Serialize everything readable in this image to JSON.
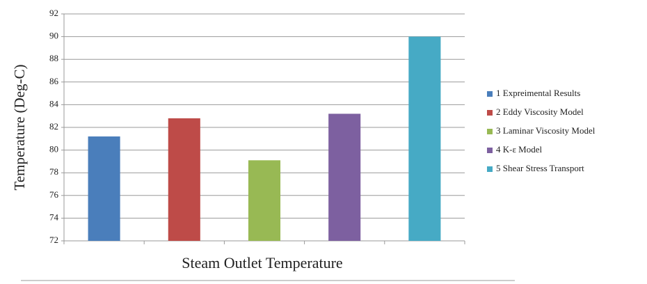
{
  "chart_data": {
    "type": "bar",
    "x_label": "Steam Outlet Temperature",
    "y_label": "Temperature (Deg-C)",
    "categories": [
      null,
      null,
      null,
      null,
      null
    ],
    "series": [
      {
        "name": "1 Expreimental Results",
        "color": "#4a7ebb",
        "values": [
          81.2,
          null,
          null,
          null,
          null
        ]
      },
      {
        "name": "2 Eddy Viscosity Model",
        "color": "#be4b48",
        "values": [
          null,
          82.8,
          null,
          null,
          null
        ]
      },
      {
        "name": "3 Laminar Viscosity Model",
        "color": "#98b954",
        "values": [
          null,
          null,
          79.1,
          null,
          null
        ]
      },
      {
        "name": "4 K-ε Model",
        "color": "#7d60a0",
        "values": [
          null,
          null,
          null,
          83.2,
          null
        ]
      },
      {
        "name": "5 Shear Stress Transport",
        "color": "#46aac5",
        "values": [
          null,
          null,
          null,
          null,
          90.0
        ]
      }
    ],
    "ylim": [
      72,
      92
    ],
    "yticks": [
      72,
      74,
      76,
      78,
      80,
      82,
      84,
      86,
      88,
      90,
      92
    ],
    "grid": true
  }
}
